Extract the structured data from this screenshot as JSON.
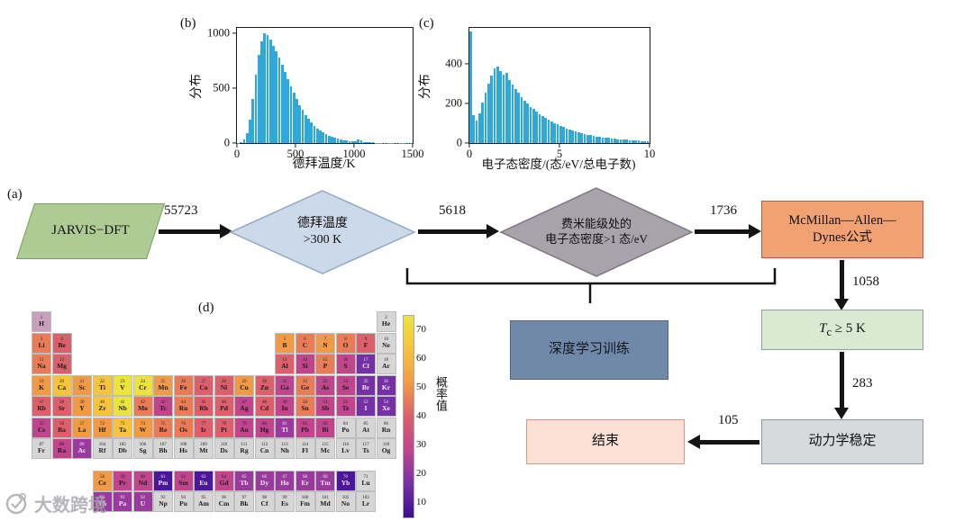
{
  "figure": {
    "panel_labels": {
      "a": "(a)",
      "b": "(b)",
      "c": "(c)",
      "d": "(d)"
    },
    "watermark_text": "大数跨境"
  },
  "chart_data": [
    {
      "id": "debye_temperature_histogram",
      "type": "bar",
      "title": "",
      "xlabel": "德拜温度/K",
      "ylabel": "分布",
      "bar_color": "#2fa8dc",
      "xlim": [
        0,
        1500
      ],
      "ylim": [
        0,
        1050
      ],
      "xticks": [
        0,
        500,
        1000,
        1500
      ],
      "yticks": [
        0,
        500,
        1000
      ],
      "bin_width": 25,
      "values": [
        2,
        8,
        30,
        90,
        210,
        400,
        620,
        800,
        930,
        1000,
        985,
        940,
        890,
        835,
        780,
        715,
        650,
        585,
        520,
        458,
        400,
        348,
        300,
        258,
        220,
        188,
        160,
        135,
        114,
        96,
        80,
        67,
        56,
        47,
        39,
        33,
        27,
        23,
        19,
        16,
        14,
        30,
        22,
        12,
        8,
        6,
        5,
        4,
        4,
        3,
        3,
        2,
        2,
        2,
        1,
        1,
        1,
        1,
        1,
        1
      ]
    },
    {
      "id": "electron_dos_histogram",
      "type": "bar",
      "title": "",
      "xlabel": "电子态密度/(态/eV/总电子数)",
      "ylabel": "分布",
      "bar_color": "#2fa8dc",
      "xlim": [
        0,
        10
      ],
      "ylim": [
        0,
        580
      ],
      "xticks": [
        0,
        5,
        10
      ],
      "yticks": [
        0,
        200,
        400
      ],
      "bin_width": 0.167,
      "values": [
        560,
        140,
        115,
        150,
        205,
        255,
        300,
        340,
        375,
        385,
        362,
        345,
        352,
        315,
        295,
        272,
        252,
        232,
        214,
        198,
        183,
        170,
        158,
        146,
        136,
        126,
        117,
        108,
        100,
        93,
        86,
        80,
        74,
        68,
        63,
        58,
        54,
        50,
        46,
        43,
        40,
        37,
        34,
        31,
        29,
        27,
        25,
        23,
        21,
        20,
        18,
        17,
        16,
        15,
        14,
        13,
        12,
        11,
        10,
        9
      ]
    }
  ],
  "flowchart": {
    "source_label": "JARVIS−DFT",
    "counts": {
      "c1": "55723",
      "c2": "5618",
      "c3": "1736",
      "c4": "1058",
      "c5": "283",
      "c6": "105"
    },
    "decision_debye": {
      "line1": "德拜温度",
      "line2": ">300 K"
    },
    "decision_dos": {
      "line1": "费米能级处的",
      "line2": "电子态密度>1 态/eV"
    },
    "mcmillan": {
      "line1": "McMillan—Allen—",
      "line2": "Dynes公式"
    },
    "tc": {
      "symbol": "T",
      "sub": "c",
      "rest": " ≥ 5 K"
    },
    "dynamic_label": "动力学稳定",
    "end_label": "结束",
    "training_label": "深度学习训练"
  },
  "periodic_table": {
    "colorbar": {
      "title": "概率值",
      "ticks": [
        "70",
        "60",
        "50",
        "40",
        "30",
        "20",
        "10"
      ],
      "colors": [
        "#ece33c",
        "#f6c33c",
        "#f19a46",
        "#dd5f6b",
        "#c0458c",
        "#7630a5",
        "#3c1090"
      ]
    },
    "cells": [
      {
        "r": 1,
        "c": 1,
        "n": 1,
        "s": "H",
        "k": "#c9a0bc"
      },
      {
        "r": 1,
        "c": 18,
        "n": 2,
        "s": "He",
        "k": "#d6d6d6"
      },
      {
        "r": 2,
        "c": 1,
        "n": 3,
        "s": "Li",
        "k": "#e97b57"
      },
      {
        "r": 2,
        "c": 2,
        "n": 4,
        "s": "Be",
        "k": "#dd5f6b"
      },
      {
        "r": 2,
        "c": 13,
        "n": 5,
        "s": "B",
        "k": "#f19a46"
      },
      {
        "r": 2,
        "c": 14,
        "n": 6,
        "s": "C",
        "k": "#e97b57"
      },
      {
        "r": 2,
        "c": 15,
        "n": 7,
        "s": "N",
        "k": "#f19a46"
      },
      {
        "r": 2,
        "c": 16,
        "n": 8,
        "s": "O",
        "k": "#e97b57"
      },
      {
        "r": 2,
        "c": 17,
        "n": 9,
        "s": "F",
        "k": "#dd5f6b"
      },
      {
        "r": 2,
        "c": 18,
        "n": 10,
        "s": "Ne",
        "k": "#d6d6d6"
      },
      {
        "r": 3,
        "c": 1,
        "n": 11,
        "s": "Na",
        "k": "#e97b57"
      },
      {
        "r": 3,
        "c": 2,
        "n": 12,
        "s": "Mg",
        "k": "#dd5f6b"
      },
      {
        "r": 3,
        "c": 13,
        "n": 13,
        "s": "Al",
        "k": "#dd5f6b"
      },
      {
        "r": 3,
        "c": 14,
        "n": 14,
        "s": "Si",
        "k": "#c0458c"
      },
      {
        "r": 3,
        "c": 15,
        "n": 15,
        "s": "P",
        "k": "#e97b57"
      },
      {
        "r": 3,
        "c": 16,
        "n": 16,
        "s": "S",
        "k": "#c0458c"
      },
      {
        "r": 3,
        "c": 17,
        "n": 17,
        "s": "Cl",
        "k": "#7630a5"
      },
      {
        "r": 3,
        "c": 18,
        "n": 18,
        "s": "Ar",
        "k": "#d6d6d6"
      },
      {
        "r": 4,
        "c": 1,
        "n": 19,
        "s": "K",
        "k": "#f19a46"
      },
      {
        "r": 4,
        "c": 2,
        "n": 20,
        "s": "Ca",
        "k": "#f6c33c"
      },
      {
        "r": 4,
        "c": 3,
        "n": 21,
        "s": "Sc",
        "k": "#f19a46"
      },
      {
        "r": 4,
        "c": 4,
        "n": 22,
        "s": "Ti",
        "k": "#f6c33c"
      },
      {
        "r": 4,
        "c": 5,
        "n": 23,
        "s": "V",
        "k": "#ece33c"
      },
      {
        "r": 4,
        "c": 6,
        "n": 24,
        "s": "Cr",
        "k": "#ece33c"
      },
      {
        "r": 4,
        "c": 7,
        "n": 25,
        "s": "Mn",
        "k": "#f19a46"
      },
      {
        "r": 4,
        "c": 8,
        "n": 26,
        "s": "Fe",
        "k": "#e97b57"
      },
      {
        "r": 4,
        "c": 9,
        "n": 27,
        "s": "Co",
        "k": "#dd5f6b"
      },
      {
        "r": 4,
        "c": 10,
        "n": 28,
        "s": "Ni",
        "k": "#dd5f6b"
      },
      {
        "r": 4,
        "c": 11,
        "n": 29,
        "s": "Cu",
        "k": "#f19a46"
      },
      {
        "r": 4,
        "c": 12,
        "n": 30,
        "s": "Zn",
        "k": "#dd5f6b"
      },
      {
        "r": 4,
        "c": 13,
        "n": 31,
        "s": "Ga",
        "k": "#c0458c"
      },
      {
        "r": 4,
        "c": 14,
        "n": 32,
        "s": "Ge",
        "k": "#e97b57"
      },
      {
        "r": 4,
        "c": 15,
        "n": 33,
        "s": "As",
        "k": "#c0458c"
      },
      {
        "r": 4,
        "c": 16,
        "n": 34,
        "s": "Se",
        "k": "#c0458c"
      },
      {
        "r": 4,
        "c": 17,
        "n": 35,
        "s": "Br",
        "k": "#7630a5"
      },
      {
        "r": 4,
        "c": 18,
        "n": 36,
        "s": "Kr",
        "k": "#7630a5"
      },
      {
        "r": 5,
        "c": 1,
        "n": 37,
        "s": "Rb",
        "k": "#dd5f6b"
      },
      {
        "r": 5,
        "c": 2,
        "n": 38,
        "s": "Sr",
        "k": "#dd5f6b"
      },
      {
        "r": 5,
        "c": 3,
        "n": 39,
        "s": "Y",
        "k": "#f19a46"
      },
      {
        "r": 5,
        "c": 4,
        "n": 40,
        "s": "Zr",
        "k": "#f6c33c"
      },
      {
        "r": 5,
        "c": 5,
        "n": 41,
        "s": "Nb",
        "k": "#ece33c"
      },
      {
        "r": 5,
        "c": 6,
        "n": 42,
        "s": "Mo",
        "k": "#e97b57"
      },
      {
        "r": 5,
        "c": 7,
        "n": 43,
        "s": "Tc",
        "k": "#c0458c"
      },
      {
        "r": 5,
        "c": 8,
        "n": 44,
        "s": "Ru",
        "k": "#e97b57"
      },
      {
        "r": 5,
        "c": 9,
        "n": 45,
        "s": "Rh",
        "k": "#dd5f6b"
      },
      {
        "r": 5,
        "c": 10,
        "n": 46,
        "s": "Pd",
        "k": "#dd5f6b"
      },
      {
        "r": 5,
        "c": 11,
        "n": 47,
        "s": "Ag",
        "k": "#c0458c"
      },
      {
        "r": 5,
        "c": 12,
        "n": 48,
        "s": "Cd",
        "k": "#dd5f6b"
      },
      {
        "r": 5,
        "c": 13,
        "n": 49,
        "s": "In",
        "k": "#c0458c"
      },
      {
        "r": 5,
        "c": 14,
        "n": 50,
        "s": "Sn",
        "k": "#e97b57"
      },
      {
        "r": 5,
        "c": 15,
        "n": 51,
        "s": "Sb",
        "k": "#c0458c"
      },
      {
        "r": 5,
        "c": 16,
        "n": 52,
        "s": "Te",
        "k": "#c0458c"
      },
      {
        "r": 5,
        "c": 17,
        "n": 53,
        "s": "I",
        "k": "#7630a5"
      },
      {
        "r": 5,
        "c": 18,
        "n": 54,
        "s": "Xe",
        "k": "#7630a5"
      },
      {
        "r": 6,
        "c": 1,
        "n": 55,
        "s": "Cs",
        "k": "#c0458c"
      },
      {
        "r": 6,
        "c": 2,
        "n": 56,
        "s": "Ba",
        "k": "#dd5f6b"
      },
      {
        "r": 6,
        "c": 3,
        "n": 57,
        "s": "La",
        "k": "#f19a46"
      },
      {
        "r": 6,
        "c": 4,
        "n": 72,
        "s": "Hf",
        "k": "#f19a46"
      },
      {
        "r": 6,
        "c": 5,
        "n": 73,
        "s": "Ta",
        "k": "#f6c33c"
      },
      {
        "r": 6,
        "c": 6,
        "n": 74,
        "s": "W",
        "k": "#f19a46"
      },
      {
        "r": 6,
        "c": 7,
        "n": 75,
        "s": "Re",
        "k": "#e97b57"
      },
      {
        "r": 6,
        "c": 8,
        "n": 76,
        "s": "Os",
        "k": "#e97b57"
      },
      {
        "r": 6,
        "c": 9,
        "n": 77,
        "s": "Ir",
        "k": "#dd5f6b"
      },
      {
        "r": 6,
        "c": 10,
        "n": 78,
        "s": "Pt",
        "k": "#dd5f6b"
      },
      {
        "r": 6,
        "c": 11,
        "n": 79,
        "s": "Au",
        "k": "#c0458c"
      },
      {
        "r": 6,
        "c": 12,
        "n": 80,
        "s": "Hg",
        "k": "#c0458c"
      },
      {
        "r": 6,
        "c": 13,
        "n": 81,
        "s": "Tl",
        "k": "#9a3a9e"
      },
      {
        "r": 6,
        "c": 14,
        "n": 82,
        "s": "Pb",
        "k": "#c0458c"
      },
      {
        "r": 6,
        "c": 15,
        "n": 83,
        "s": "Bi",
        "k": "#c0458c"
      },
      {
        "r": 6,
        "c": 16,
        "n": 84,
        "s": "Po",
        "k": "#d6d6d6"
      },
      {
        "r": 6,
        "c": 17,
        "n": 85,
        "s": "At",
        "k": "#d6d6d6"
      },
      {
        "r": 6,
        "c": 18,
        "n": 86,
        "s": "Rn",
        "k": "#d6d6d6"
      },
      {
        "r": 7,
        "c": 1,
        "n": 87,
        "s": "Fr",
        "k": "#d6d6d6"
      },
      {
        "r": 7,
        "c": 2,
        "n": 88,
        "s": "Ra",
        "k": "#c0458c"
      },
      {
        "r": 7,
        "c": 3,
        "n": 89,
        "s": "Ac",
        "k": "#9a3a9e"
      },
      {
        "r": 7,
        "c": 4,
        "n": 104,
        "s": "Rf",
        "k": "#d6d6d6"
      },
      {
        "r": 7,
        "c": 5,
        "n": 105,
        "s": "Db",
        "k": "#d6d6d6"
      },
      {
        "r": 7,
        "c": 6,
        "n": 106,
        "s": "Sg",
        "k": "#d6d6d6"
      },
      {
        "r": 7,
        "c": 7,
        "n": 107,
        "s": "Bh",
        "k": "#d6d6d6"
      },
      {
        "r": 7,
        "c": 8,
        "n": 108,
        "s": "Hs",
        "k": "#d6d6d6"
      },
      {
        "r": 7,
        "c": 9,
        "n": 109,
        "s": "Mt",
        "k": "#d6d6d6"
      },
      {
        "r": 7,
        "c": 10,
        "n": 110,
        "s": "Ds",
        "k": "#d6d6d6"
      },
      {
        "r": 7,
        "c": 11,
        "n": 111,
        "s": "Rg",
        "k": "#d6d6d6"
      },
      {
        "r": 7,
        "c": 12,
        "n": 112,
        "s": "Cn",
        "k": "#d6d6d6"
      },
      {
        "r": 7,
        "c": 13,
        "n": 113,
        "s": "Nh",
        "k": "#d6d6d6"
      },
      {
        "r": 7,
        "c": 14,
        "n": 114,
        "s": "Fl",
        "k": "#d6d6d6"
      },
      {
        "r": 7,
        "c": 15,
        "n": 115,
        "s": "Mc",
        "k": "#d6d6d6"
      },
      {
        "r": 7,
        "c": 16,
        "n": 116,
        "s": "Lv",
        "k": "#d6d6d6"
      },
      {
        "r": 7,
        "c": 17,
        "n": 117,
        "s": "Ts",
        "k": "#d6d6d6"
      },
      {
        "r": 7,
        "c": 18,
        "n": 118,
        "s": "Og",
        "k": "#d6d6d6"
      },
      {
        "r": 8,
        "c": 4,
        "n": 58,
        "s": "Ce",
        "k": "#f19a46"
      },
      {
        "r": 8,
        "c": 5,
        "n": 59,
        "s": "Pr",
        "k": "#c0458c"
      },
      {
        "r": 8,
        "c": 6,
        "n": 60,
        "s": "Nd",
        "k": "#c0458c"
      },
      {
        "r": 8,
        "c": 7,
        "n": 61,
        "s": "Pm",
        "k": "#4c169a"
      },
      {
        "r": 8,
        "c": 8,
        "n": 62,
        "s": "Sm",
        "k": "#c0458c"
      },
      {
        "r": 8,
        "c": 9,
        "n": 63,
        "s": "Eu",
        "k": "#4c169a"
      },
      {
        "r": 8,
        "c": 10,
        "n": 64,
        "s": "Gd",
        "k": "#c0458c"
      },
      {
        "r": 8,
        "c": 11,
        "n": 65,
        "s": "Tb",
        "k": "#9a3a9e"
      },
      {
        "r": 8,
        "c": 12,
        "n": 66,
        "s": "Dy",
        "k": "#9a3a9e"
      },
      {
        "r": 8,
        "c": 13,
        "n": 67,
        "s": "Ho",
        "k": "#9a3a9e"
      },
      {
        "r": 8,
        "c": 14,
        "n": 68,
        "s": "Er",
        "k": "#9a3a9e"
      },
      {
        "r": 8,
        "c": 15,
        "n": 69,
        "s": "Tm",
        "k": "#9a3a9e"
      },
      {
        "r": 8,
        "c": 16,
        "n": 70,
        "s": "Yb",
        "k": "#4c169a"
      },
      {
        "r": 8,
        "c": 17,
        "n": 71,
        "s": "Lu",
        "k": "#d6d6d6"
      },
      {
        "r": 9,
        "c": 4,
        "n": 90,
        "s": "Th",
        "k": "#9a3a9e"
      },
      {
        "r": 9,
        "c": 5,
        "n": 91,
        "s": "Pa",
        "k": "#9a3a9e"
      },
      {
        "r": 9,
        "c": 6,
        "n": 92,
        "s": "U",
        "k": "#9a3a9e"
      },
      {
        "r": 9,
        "c": 7,
        "n": 93,
        "s": "Np",
        "k": "#d6d6d6"
      },
      {
        "r": 9,
        "c": 8,
        "n": 94,
        "s": "Pu",
        "k": "#d6d6d6"
      },
      {
        "r": 9,
        "c": 9,
        "n": 95,
        "s": "Am",
        "k": "#d6d6d6"
      },
      {
        "r": 9,
        "c": 10,
        "n": 96,
        "s": "Cm",
        "k": "#d6d6d6"
      },
      {
        "r": 9,
        "c": 11,
        "n": 97,
        "s": "Bk",
        "k": "#d6d6d6"
      },
      {
        "r": 9,
        "c": 12,
        "n": 98,
        "s": "Cf",
        "k": "#d6d6d6"
      },
      {
        "r": 9,
        "c": 13,
        "n": 99,
        "s": "Es",
        "k": "#d6d6d6"
      },
      {
        "r": 9,
        "c": 14,
        "n": 100,
        "s": "Fm",
        "k": "#d6d6d6"
      },
      {
        "r": 9,
        "c": 15,
        "n": 101,
        "s": "Md",
        "k": "#d6d6d6"
      },
      {
        "r": 9,
        "c": 16,
        "n": 102,
        "s": "No",
        "k": "#d6d6d6"
      },
      {
        "r": 9,
        "c": 17,
        "n": 103,
        "s": "Lr",
        "k": "#d6d6d6"
      }
    ]
  }
}
